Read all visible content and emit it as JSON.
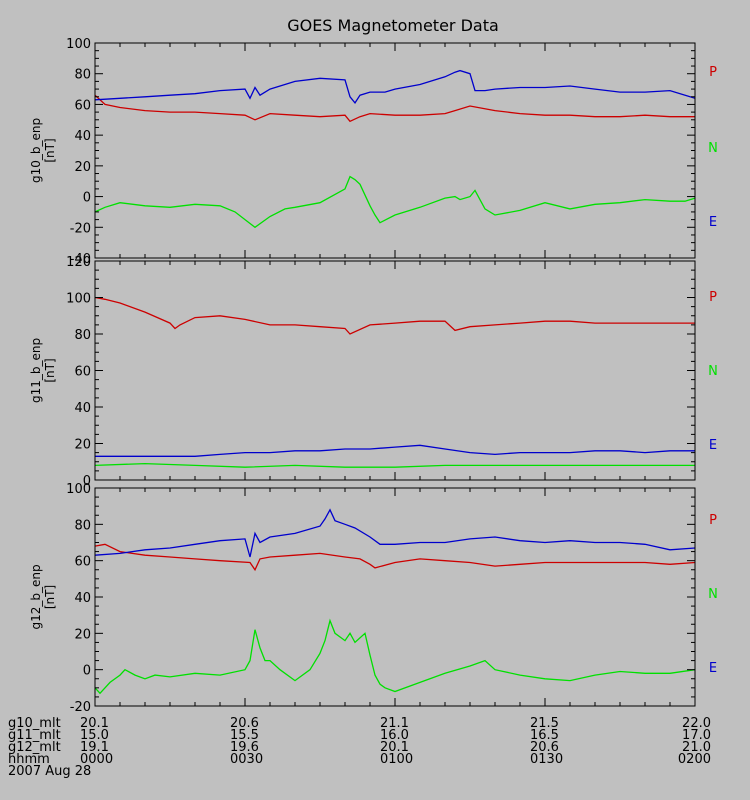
{
  "chart_data": {
    "type": "line",
    "title": "GOES Magnetometer Data",
    "x_range_hhmm": [
      "0000",
      "0200"
    ],
    "x_range_minutes": [
      0,
      120
    ],
    "colors": {
      "P": "#cc0000",
      "N": "#00e000",
      "E": "#0000cc",
      "background": "#c0c0c0",
      "axes": "#000000"
    },
    "legend_labels": [
      "P",
      "N",
      "E"
    ],
    "panels": [
      {
        "ylabel": "g10_b_enp",
        "yunit": "[nT]",
        "ylim": [
          -40,
          100
        ],
        "yticks": [
          -40,
          -20,
          0,
          20,
          40,
          60,
          80,
          100
        ],
        "series": [
          {
            "name": "P",
            "color": "#cc0000",
            "x": [
              0,
              2,
              5,
              10,
              15,
              20,
              25,
              30,
              32,
              35,
              40,
              45,
              50,
              51,
              53,
              55,
              60,
              65,
              70,
              72,
              75,
              80,
              85,
              90,
              95,
              100,
              105,
              110,
              115,
              120
            ],
            "y": [
              66,
              60,
              58,
              56,
              55,
              55,
              54,
              53,
              50,
              54,
              53,
              52,
              53,
              49,
              52,
              54,
              53,
              53,
              54,
              56,
              59,
              56,
              54,
              53,
              53,
              52,
              52,
              53,
              52,
              52
            ]
          },
          {
            "name": "N",
            "color": "#00e000",
            "x": [
              0,
              2,
              5,
              10,
              15,
              20,
              25,
              28,
              30,
              32,
              35,
              38,
              40,
              45,
              50,
              51,
              52,
              53,
              55,
              56,
              57,
              60,
              65,
              70,
              72,
              73,
              75,
              76,
              78,
              80,
              85,
              90,
              95,
              100,
              105,
              110,
              115,
              118,
              120
            ],
            "y": [
              -10,
              -7,
              -4,
              -6,
              -7,
              -5,
              -6,
              -10,
              -15,
              -20,
              -13,
              -8,
              -7,
              -4,
              5,
              13,
              11,
              8,
              -6,
              -12,
              -17,
              -12,
              -7,
              -1,
              0,
              -2,
              0,
              4,
              -8,
              -12,
              -9,
              -4,
              -8,
              -5,
              -4,
              -2,
              -3,
              -3,
              -1
            ]
          },
          {
            "name": "E",
            "color": "#0000cc",
            "x": [
              0,
              5,
              10,
              15,
              20,
              25,
              30,
              31,
              32,
              33,
              35,
              40,
              45,
              50,
              51,
              52,
              53,
              55,
              58,
              60,
              65,
              70,
              72,
              73,
              75,
              76,
              78,
              80,
              85,
              90,
              95,
              100,
              105,
              110,
              115,
              120
            ],
            "y": [
              63,
              64,
              65,
              66,
              67,
              69,
              70,
              64,
              71,
              66,
              70,
              75,
              77,
              76,
              65,
              61,
              66,
              68,
              68,
              70,
              73,
              78,
              81,
              82,
              80,
              69,
              69,
              70,
              71,
              71,
              72,
              70,
              68,
              68,
              69,
              64
            ]
          }
        ]
      },
      {
        "ylabel": "g11_b_enp",
        "yunit": "[nT]",
        "ylim": [
          0,
          120
        ],
        "yticks": [
          0,
          20,
          40,
          60,
          80,
          100,
          120
        ],
        "series": [
          {
            "name": "P",
            "color": "#cc0000",
            "x": [
              0,
              2,
              5,
              10,
              15,
              16,
              17,
              20,
              25,
              30,
              35,
              40,
              45,
              50,
              51,
              55,
              60,
              65,
              70,
              72,
              75,
              80,
              85,
              90,
              95,
              100,
              105,
              110,
              115,
              120
            ],
            "y": [
              100,
              99,
              97,
              92,
              86,
              83,
              85,
              89,
              90,
              88,
              85,
              85,
              84,
              83,
              80,
              85,
              86,
              87,
              87,
              82,
              84,
              85,
              86,
              87,
              87,
              86,
              86,
              86,
              86,
              86
            ]
          },
          {
            "name": "N",
            "color": "#00e000",
            "x": [
              0,
              10,
              20,
              30,
              40,
              50,
              60,
              70,
              80,
              90,
              100,
              110,
              120
            ],
            "y": [
              8,
              9,
              8,
              7,
              8,
              7,
              7,
              8,
              8,
              8,
              8,
              8,
              8
            ]
          },
          {
            "name": "E",
            "color": "#0000cc",
            "x": [
              0,
              5,
              10,
              15,
              20,
              25,
              30,
              35,
              40,
              45,
              50,
              55,
              60,
              65,
              70,
              75,
              80,
              85,
              90,
              95,
              100,
              105,
              110,
              115,
              120
            ],
            "y": [
              13,
              13,
              13,
              13,
              13,
              14,
              15,
              15,
              16,
              16,
              17,
              17,
              18,
              19,
              17,
              15,
              14,
              15,
              15,
              15,
              16,
              16,
              15,
              16,
              16
            ]
          }
        ]
      },
      {
        "ylabel": "g12_b_enp",
        "yunit": "[nT]",
        "ylim": [
          -20,
          100
        ],
        "yticks": [
          -20,
          0,
          20,
          40,
          60,
          80,
          100
        ],
        "series": [
          {
            "name": "P",
            "color": "#cc0000",
            "x": [
              0,
              2,
              5,
              10,
              15,
              20,
              25,
              31,
              32,
              33,
              35,
              40,
              45,
              50,
              53,
              55,
              56,
              60,
              65,
              70,
              75,
              80,
              85,
              90,
              95,
              100,
              105,
              110,
              115,
              120
            ],
            "y": [
              68,
              69,
              65,
              63,
              62,
              61,
              60,
              59,
              55,
              61,
              62,
              63,
              64,
              62,
              61,
              58,
              56,
              59,
              61,
              60,
              59,
              57,
              58,
              59,
              59,
              59,
              59,
              59,
              58,
              59
            ]
          },
          {
            "name": "N",
            "color": "#00e000",
            "x": [
              0,
              1,
              3,
              5,
              6,
              8,
              10,
              12,
              15,
              20,
              25,
              30,
              31,
              32,
              33,
              34,
              35,
              37,
              40,
              43,
              45,
              46,
              47,
              48,
              50,
              51,
              52,
              54,
              55,
              56,
              57,
              58,
              60,
              65,
              70,
              75,
              78,
              80,
              85,
              90,
              95,
              100,
              105,
              110,
              115,
              120
            ],
            "y": [
              -10,
              -13,
              -7,
              -3,
              0,
              -3,
              -5,
              -3,
              -4,
              -2,
              -3,
              0,
              5,
              22,
              12,
              5,
              5,
              0,
              -6,
              0,
              9,
              16,
              27,
              20,
              16,
              20,
              15,
              20,
              8,
              -3,
              -8,
              -10,
              -12,
              -7,
              -2,
              2,
              5,
              0,
              -3,
              -5,
              -6,
              -3,
              -1,
              -2,
              -2,
              0
            ]
          },
          {
            "name": "E",
            "color": "#0000cc",
            "x": [
              0,
              5,
              10,
              15,
              20,
              25,
              30,
              31,
              32,
              33,
              35,
              40,
              45,
              46,
              47,
              48,
              50,
              52,
              55,
              57,
              60,
              65,
              70,
              75,
              80,
              85,
              90,
              95,
              100,
              105,
              110,
              115,
              120
            ],
            "y": [
              63,
              64,
              66,
              67,
              69,
              71,
              72,
              62,
              75,
              70,
              73,
              75,
              79,
              83,
              88,
              82,
              80,
              78,
              73,
              69,
              69,
              70,
              70,
              72,
              73,
              71,
              70,
              71,
              70,
              70,
              69,
              66,
              67
            ]
          }
        ]
      }
    ],
    "bottom_labels": {
      "rows": [
        {
          "label": "g10_mlt",
          "values": [
            "20.1",
            "20.6",
            "21.1",
            "21.5",
            "22.0"
          ]
        },
        {
          "label": "g11_mlt",
          "values": [
            "15.0",
            "15.5",
            "16.0",
            "16.5",
            "17.0"
          ]
        },
        {
          "label": "g12_mlt",
          "values": [
            "19.1",
            "19.6",
            "20.1",
            "20.6",
            "21.0"
          ]
        },
        {
          "label": "hhmm",
          "values": [
            "0000",
            "0030",
            "0100",
            "0130",
            "0200"
          ]
        }
      ],
      "date": "2007 Aug 28"
    }
  }
}
